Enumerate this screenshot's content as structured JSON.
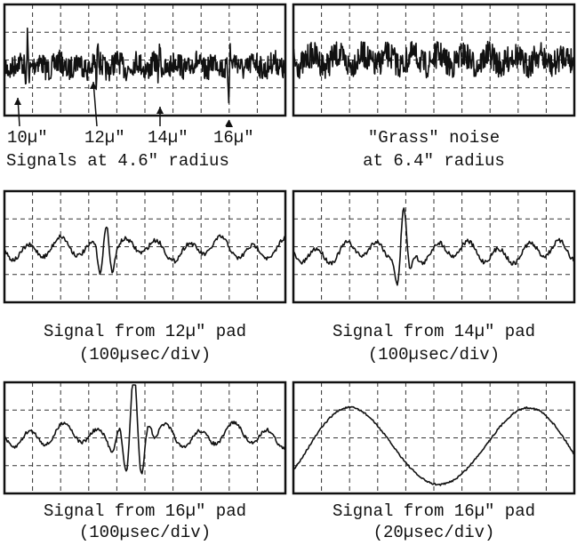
{
  "panels": [
    {
      "pointer_labels": [
        "10µ\"",
        "12µ\"",
        "14µ\"",
        "16µ\""
      ],
      "caption": [
        "Signals at 4.6\" radius"
      ]
    },
    {
      "caption": [
        "\"Grass\" noise",
        "at 6.4\" radius"
      ]
    },
    {
      "caption": [
        "Signal from 12µ\" pad",
        "(100µsec/div)"
      ]
    },
    {
      "caption": [
        "Signal from 14µ\" pad",
        "(100µsec/div)"
      ]
    },
    {
      "caption": [
        "Signal from 16µ\" pad",
        "(100µsec/div)"
      ]
    },
    {
      "caption": [
        "Signal from 16µ\" pad",
        "(20µsec/div)"
      ]
    }
  ]
}
